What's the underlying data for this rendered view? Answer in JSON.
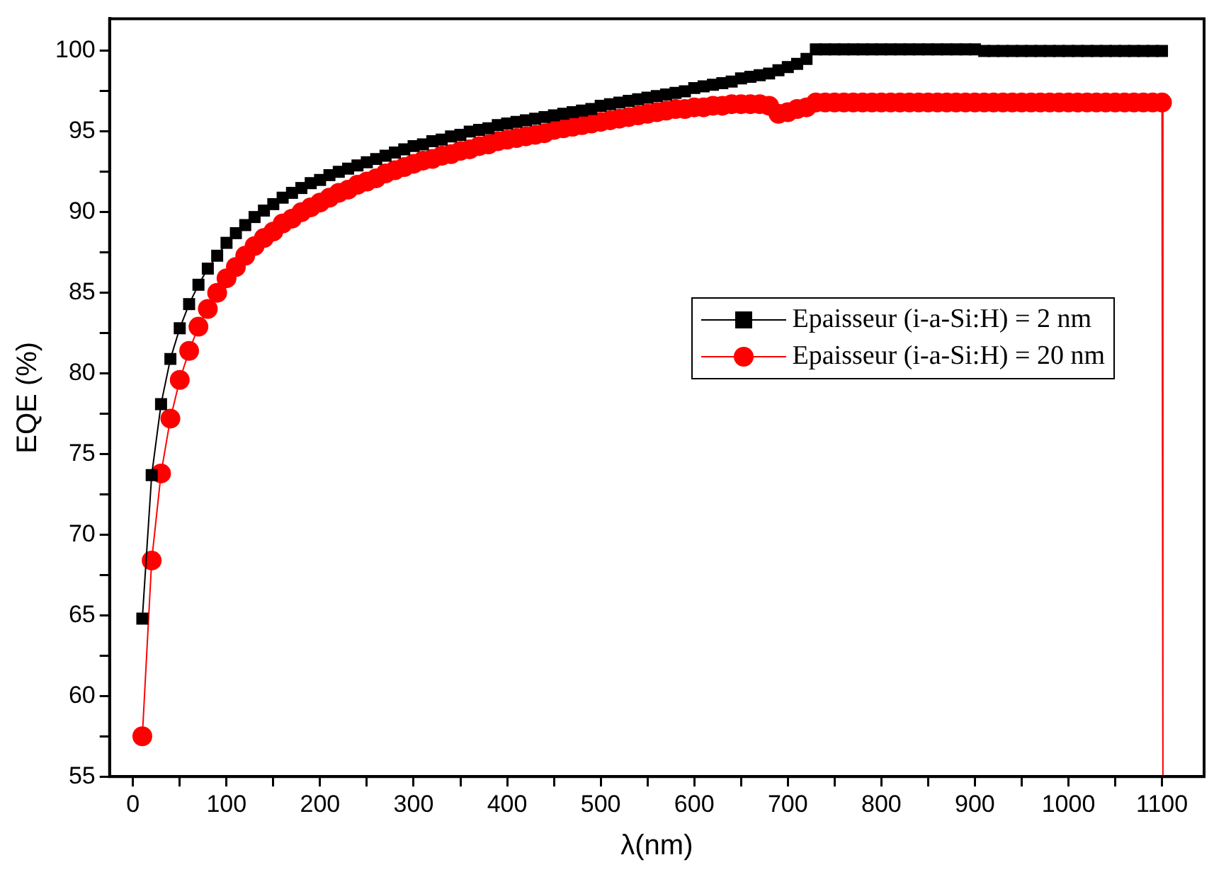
{
  "chart_data": {
    "type": "line",
    "xlabel": "λ(nm)",
    "ylabel": "EQE (%)",
    "xlim": [
      -25,
      1145
    ],
    "ylim": [
      55,
      102
    ],
    "xticks": [
      0,
      {
        "value": 50,
        "label": null
      },
      100,
      {
        "value": 150,
        "label": null
      },
      200,
      {
        "value": 250,
        "label": null
      },
      300,
      {
        "value": 350,
        "label": null
      },
      400,
      {
        "value": 450,
        "label": null
      },
      500,
      {
        "value": 550,
        "label": null
      },
      600,
      {
        "value": 650,
        "label": null
      },
      700,
      {
        "value": 750,
        "label": null
      },
      800,
      {
        "value": 850,
        "label": null
      },
      900,
      {
        "value": 950,
        "label": null
      },
      1000,
      {
        "value": 1050,
        "label": null
      },
      1100
    ],
    "yticks": [
      55,
      {
        "value": 57.5,
        "label": null
      },
      60,
      {
        "value": 62.5,
        "label": null
      },
      65,
      {
        "value": 67.5,
        "label": null
      },
      70,
      {
        "value": 72.5,
        "label": null
      },
      75,
      {
        "value": 77.5,
        "label": null
      },
      80,
      {
        "value": 82.5,
        "label": null
      },
      85,
      {
        "value": 87.5,
        "label": null
      },
      90,
      {
        "value": 92.5,
        "label": null
      },
      95,
      {
        "value": 97.5,
        "label": null
      },
      100
    ],
    "grid": false,
    "legend": "right",
    "line_style": "solid",
    "series": [
      {
        "name": "Epaisseur (i-a-Si:H) = 2 nm",
        "color": "#000000",
        "marker": "square",
        "x": [
          10,
          20,
          30,
          40,
          50,
          60,
          70,
          80,
          90,
          100,
          110,
          120,
          130,
          140,
          150,
          160,
          170,
          180,
          190,
          200,
          210,
          220,
          230,
          240,
          250,
          260,
          270,
          280,
          290,
          300,
          310,
          320,
          330,
          340,
          350,
          360,
          370,
          380,
          390,
          400,
          410,
          420,
          430,
          440,
          450,
          460,
          470,
          480,
          490,
          500,
          510,
          520,
          530,
          540,
          550,
          560,
          570,
          580,
          590,
          600,
          610,
          620,
          630,
          640,
          650,
          660,
          670,
          680,
          690,
          700,
          710,
          720,
          730,
          740,
          750,
          760,
          770,
          780,
          790,
          800,
          810,
          820,
          830,
          840,
          850,
          860,
          870,
          880,
          890,
          900,
          910,
          920,
          930,
          940,
          950,
          960,
          970,
          980,
          990,
          1000,
          1010,
          1020,
          1030,
          1040,
          1050,
          1060,
          1070,
          1080,
          1090,
          1100
        ],
        "values": [
          64.8,
          73.7,
          78.1,
          80.9,
          82.8,
          84.3,
          85.5,
          86.5,
          87.3,
          88.1,
          88.7,
          89.2,
          89.7,
          90.1,
          90.5,
          90.9,
          91.2,
          91.5,
          91.8,
          92.0,
          92.3,
          92.5,
          92.7,
          92.9,
          93.1,
          93.3,
          93.5,
          93.7,
          93.9,
          94.1,
          94.2,
          94.4,
          94.5,
          94.7,
          94.8,
          95.0,
          95.1,
          95.2,
          95.4,
          95.5,
          95.6,
          95.7,
          95.8,
          95.9,
          96.0,
          96.1,
          96.2,
          96.3,
          96.4,
          96.6,
          96.7,
          96.8,
          96.9,
          97.0,
          97.1,
          97.2,
          97.3,
          97.4,
          97.5,
          97.7,
          97.8,
          97.9,
          98.0,
          98.1,
          98.3,
          98.4,
          98.5,
          98.6,
          98.8,
          99.0,
          99.2,
          99.5,
          100.1,
          100.1,
          100.1,
          100.1,
          100.1,
          100.1,
          100.1,
          100.1,
          100.1,
          100.1,
          100.1,
          100.1,
          100.1,
          100.1,
          100.1,
          100.1,
          100.1,
          100.1,
          100.0,
          100.0,
          100.0,
          100.0,
          100.0,
          100.0,
          100.0,
          100.0,
          100.0,
          100.0,
          100.0,
          100.0,
          100.0,
          100.0,
          100.0,
          100.0,
          100.0,
          100.0,
          100.0,
          100.0
        ]
      },
      {
        "name": "Epaisseur (i-a-Si:H) = 20 nm",
        "color": "#ff0000",
        "marker": "circle",
        "x": [
          10,
          20,
          30,
          40,
          50,
          60,
          70,
          80,
          90,
          100,
          110,
          120,
          130,
          140,
          150,
          160,
          170,
          180,
          190,
          200,
          210,
          220,
          230,
          240,
          250,
          260,
          270,
          280,
          290,
          300,
          310,
          320,
          330,
          340,
          350,
          360,
          370,
          380,
          390,
          400,
          410,
          420,
          430,
          440,
          450,
          460,
          470,
          480,
          490,
          500,
          510,
          520,
          530,
          540,
          550,
          560,
          570,
          580,
          590,
          600,
          610,
          620,
          630,
          640,
          650,
          660,
          670,
          680,
          690,
          700,
          710,
          720,
          730,
          740,
          750,
          760,
          770,
          780,
          790,
          800,
          810,
          820,
          830,
          840,
          850,
          860,
          870,
          880,
          890,
          900,
          910,
          920,
          930,
          940,
          950,
          960,
          970,
          980,
          990,
          1000,
          1010,
          1020,
          1030,
          1040,
          1050,
          1060,
          1070,
          1080,
          1090,
          1100,
          1101
        ],
        "values": [
          57.5,
          68.4,
          73.8,
          77.2,
          79.6,
          81.4,
          82.9,
          84.0,
          85.0,
          85.9,
          86.6,
          87.3,
          87.9,
          88.4,
          88.8,
          89.3,
          89.6,
          90.0,
          90.3,
          90.6,
          90.9,
          91.2,
          91.4,
          91.7,
          91.9,
          92.1,
          92.4,
          92.6,
          92.8,
          93.0,
          93.2,
          93.3,
          93.5,
          93.6,
          93.8,
          93.9,
          94.1,
          94.2,
          94.4,
          94.5,
          94.6,
          94.7,
          94.8,
          94.9,
          95.1,
          95.2,
          95.3,
          95.4,
          95.5,
          95.6,
          95.7,
          95.8,
          95.9,
          96.0,
          96.1,
          96.2,
          96.3,
          96.4,
          96.4,
          96.5,
          96.5,
          96.6,
          96.6,
          96.7,
          96.7,
          96.7,
          96.7,
          96.6,
          96.1,
          96.2,
          96.4,
          96.5,
          96.8,
          96.8,
          96.8,
          96.8,
          96.8,
          96.8,
          96.8,
          96.8,
          96.8,
          96.8,
          96.8,
          96.8,
          96.8,
          96.8,
          96.8,
          96.8,
          96.8,
          96.8,
          96.8,
          96.8,
          96.8,
          96.8,
          96.8,
          96.8,
          96.8,
          96.8,
          96.8,
          96.8,
          96.8,
          96.8,
          96.8,
          96.8,
          96.8,
          96.8,
          96.8,
          96.8,
          96.8,
          96.8,
          55
        ]
      }
    ]
  }
}
